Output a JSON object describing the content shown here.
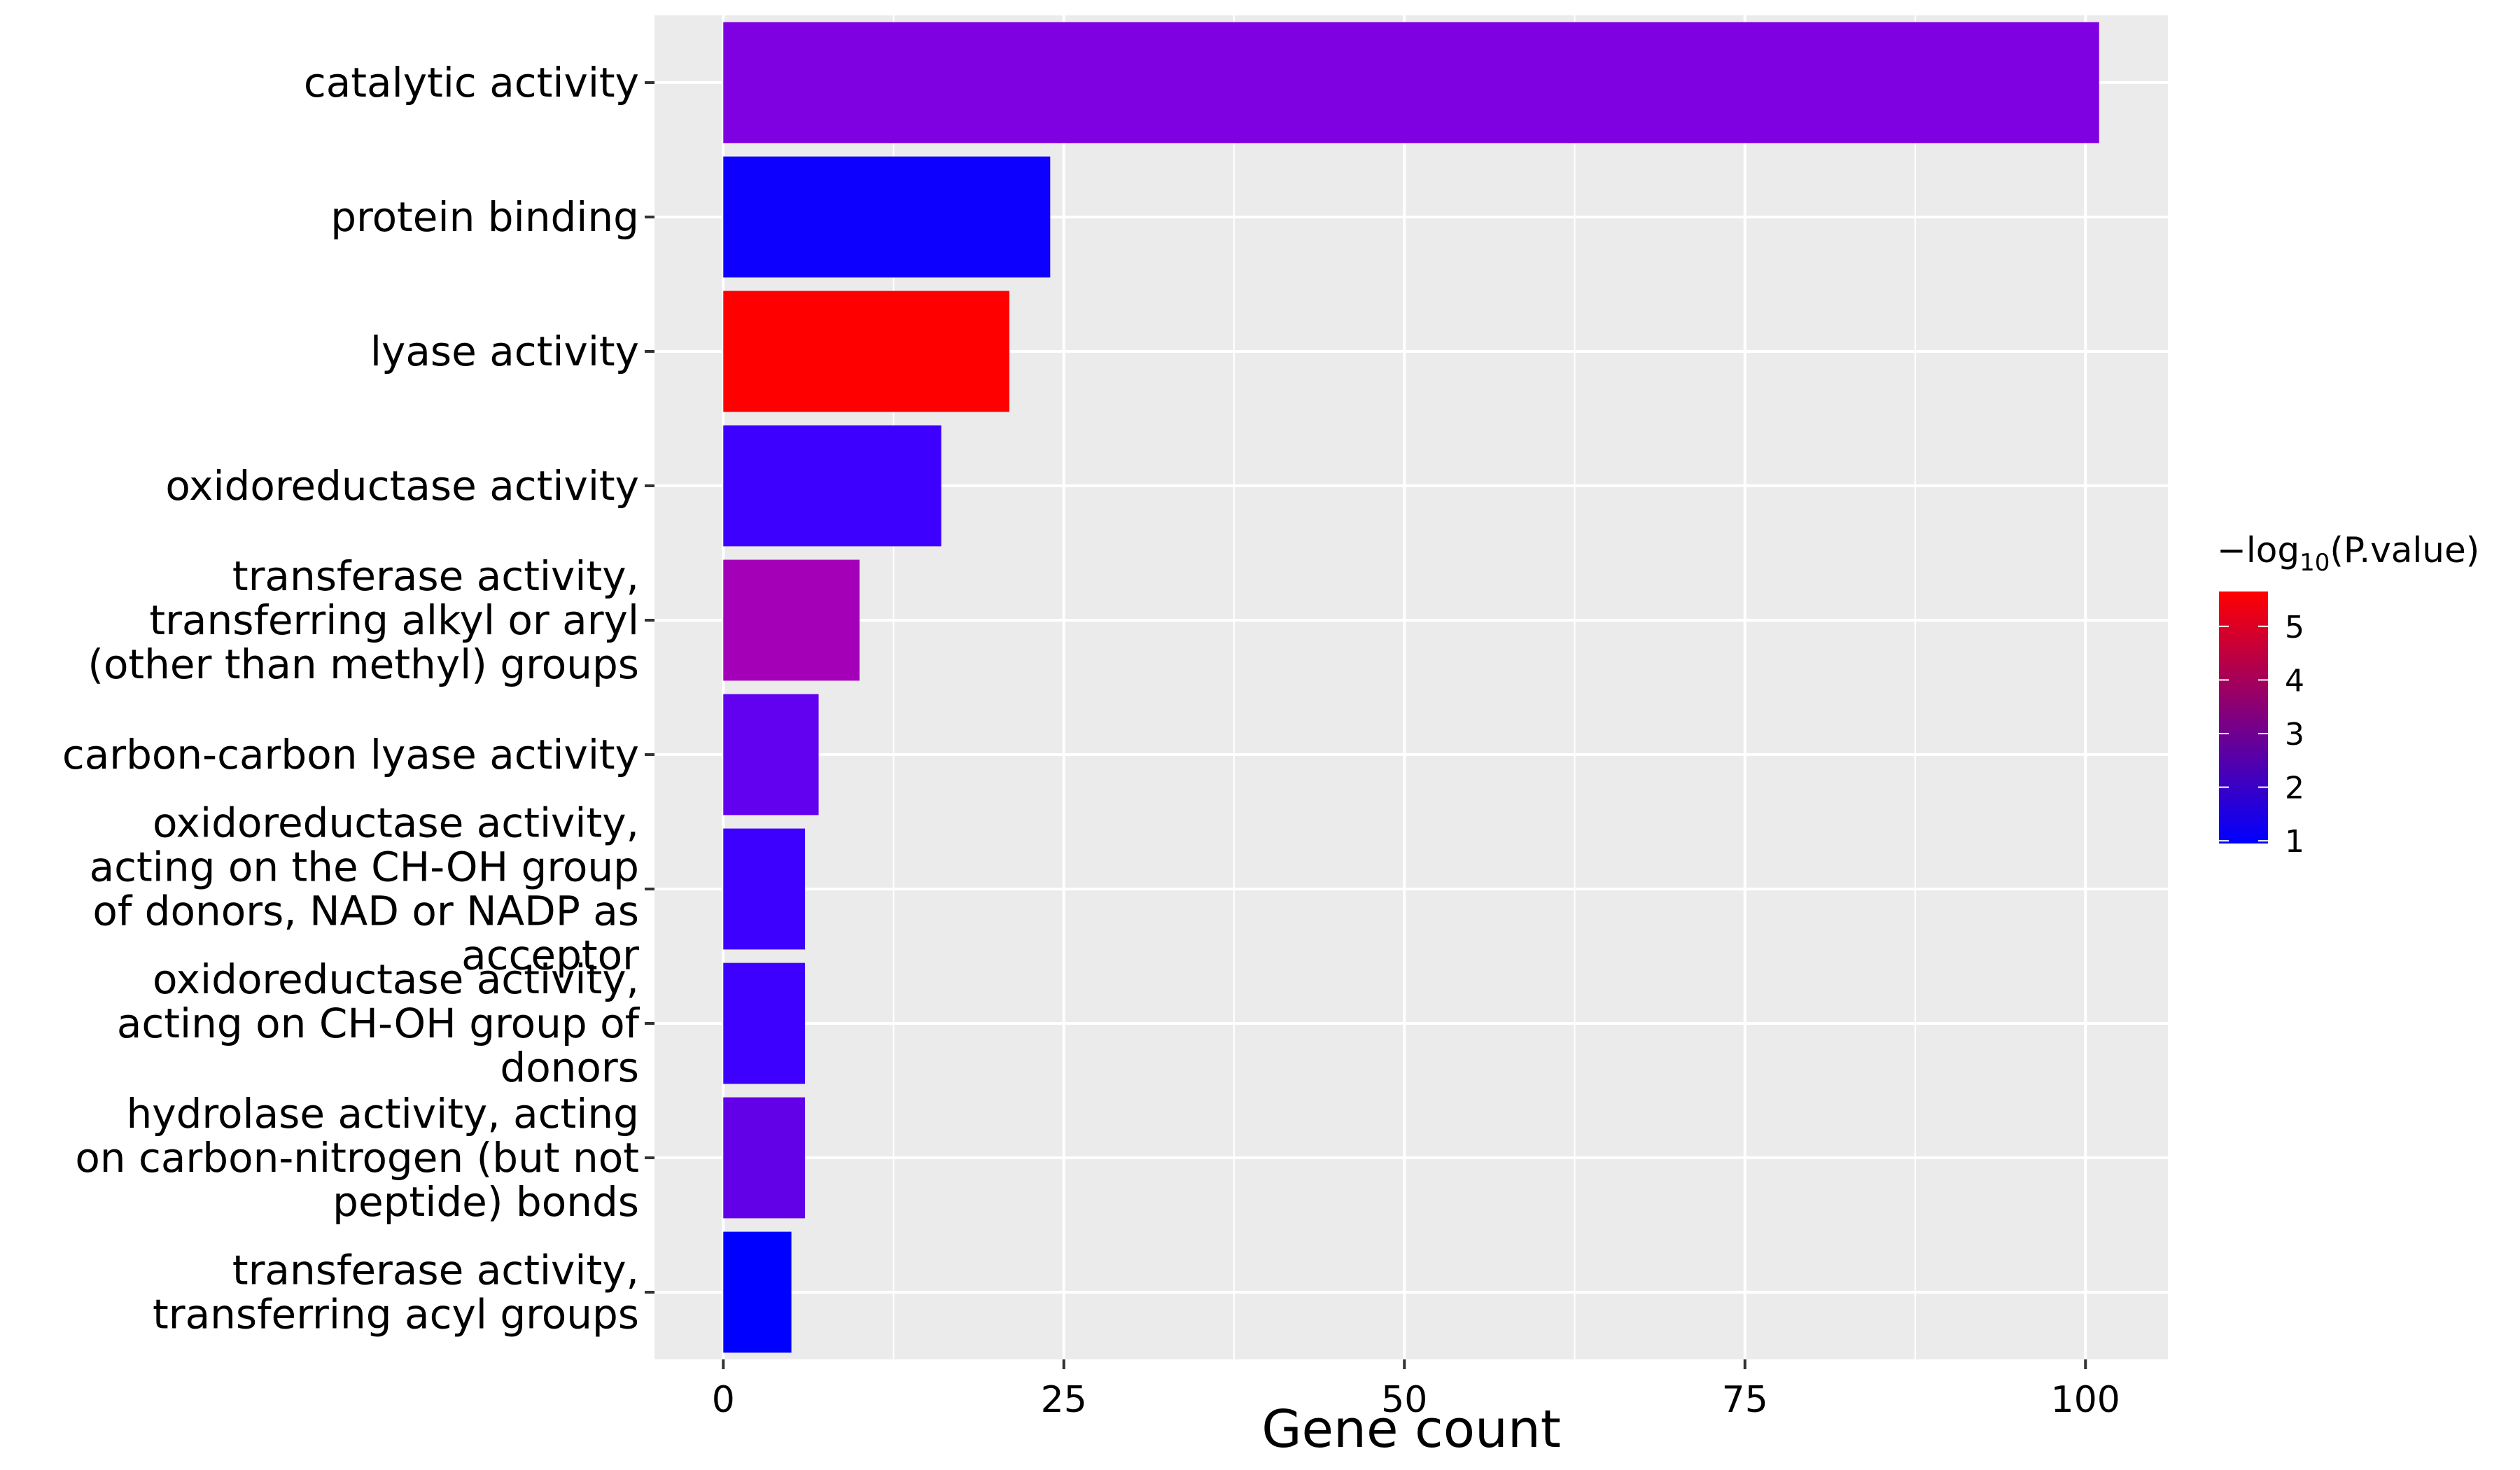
{
  "chart_data": {
    "type": "bar",
    "orientation": "horizontal",
    "xlabel": "Gene count",
    "ylabel": "",
    "xlim": [
      -5.05,
      106.05
    ],
    "xticks": [
      0,
      25,
      50,
      75,
      100
    ],
    "grid": true,
    "legend_placement": "right",
    "categories": [
      "catalytic activity",
      "protein binding",
      "lyase activity",
      "oxidoreductase activity",
      "transferase activity, transferring alkyl or aryl (other than methyl) groups",
      "carbon-carbon lyase activity",
      "oxidoreductase activity, acting on the CH-OH group of donors, NAD or NADP as acceptor",
      "oxidoreductase activity, acting on CH-OH group of donors",
      "hydrolase activity, acting on carbon-nitrogen (but not peptide) bonds",
      "transferase activity, transferring acyl groups"
    ],
    "category_label_lines": [
      [
        "catalytic activity"
      ],
      [
        "protein binding"
      ],
      [
        "lyase activity"
      ],
      [
        "oxidoreductase activity"
      ],
      [
        "transferase activity,",
        "transferring alkyl or aryl",
        "(other than methyl) groups"
      ],
      [
        "carbon-carbon lyase activity"
      ],
      [
        "oxidoreductase activity,",
        "acting on the CH-OH group",
        "of donors, NAD or NADP as",
        "acceptor"
      ],
      [
        "oxidoreductase activity,",
        "acting on CH-OH group of",
        "donors"
      ],
      [
        "hydrolase activity, acting",
        "on carbon-nitrogen (but not",
        "peptide) bonds"
      ],
      [
        "transferase activity,",
        "transferring acyl groups"
      ]
    ],
    "values": [
      101,
      24,
      21,
      16,
      10,
      7,
      6,
      6,
      6,
      5
    ],
    "color_values": [
      2.3,
      1.1,
      5.6,
      1.5,
      2.8,
      1.9,
      1.5,
      1.5,
      1.9,
      1.0
    ],
    "colors": [
      "#7F00E0",
      "#0E00FF",
      "#FF0000",
      "#3D00FF",
      "#A300B8",
      "#6200F0",
      "#3D00FF",
      "#3D00FF",
      "#6200E8",
      "#0000FF"
    ],
    "legend": {
      "title_prefix": "−log",
      "title_sub": "10",
      "title_suffix": "(P.value)",
      "range": [
        0.95,
        5.65
      ],
      "ticks": [
        1,
        2,
        3,
        4,
        5
      ],
      "low_color": "#0000FF",
      "high_color": "#FF0000"
    }
  }
}
